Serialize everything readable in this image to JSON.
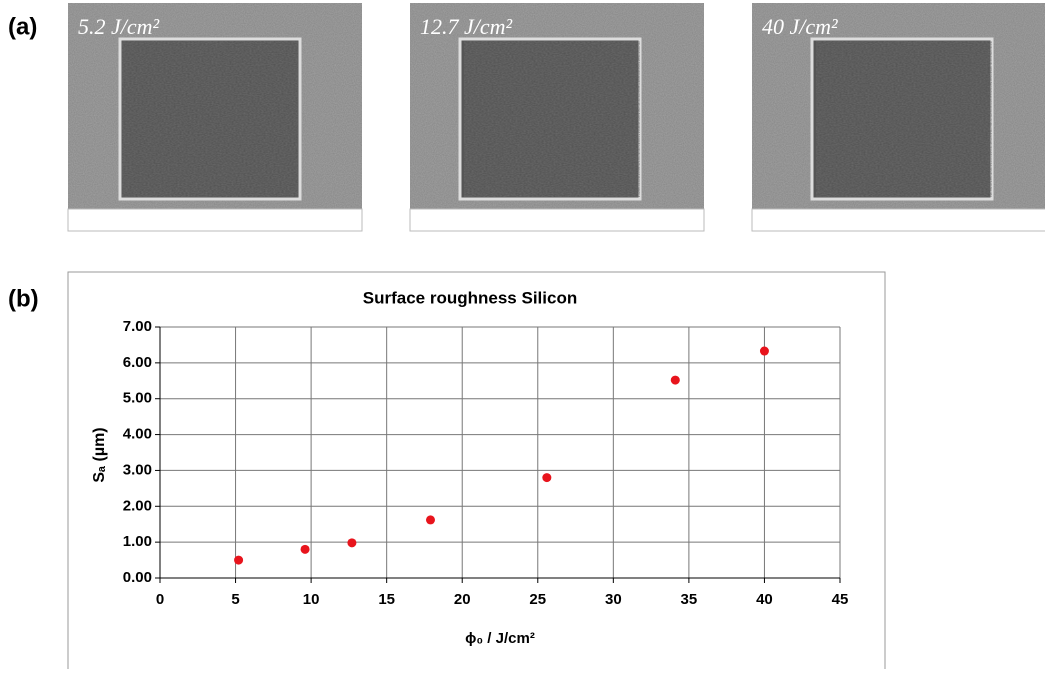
{
  "panels": {
    "a": {
      "label": "(a)",
      "images": [
        {
          "label": "5.2 J/cm²"
        },
        {
          "label": "12.7 J/cm²"
        },
        {
          "label": "40 J/cm²"
        }
      ]
    },
    "b": {
      "label": "(b)"
    }
  },
  "chart_data": {
    "type": "scatter",
    "title": "Surface roughness Silicon",
    "x_label": "ϕ₀ / J/cm²",
    "y_label": "Sₐ (µm)",
    "x": [
      5.2,
      9.6,
      12.7,
      17.9,
      25.6,
      34.1,
      40
    ],
    "series": [
      {
        "color": "#e8141c",
        "values": [
          0.5,
          0.8,
          0.98,
          1.62,
          2.8,
          5.52,
          6.33
        ]
      }
    ],
    "xlim": [
      0,
      45
    ],
    "xticks": [
      0,
      5,
      10,
      15,
      20,
      25,
      30,
      35,
      40,
      45
    ],
    "ylim": [
      0,
      7
    ],
    "yticks": [
      {
        "value": 0,
        "label": "0.00"
      },
      {
        "value": 1,
        "label": "1.00"
      },
      {
        "value": 2,
        "label": "2.00"
      },
      {
        "value": 3,
        "label": "3.00"
      },
      {
        "value": 4,
        "label": "4.00"
      },
      {
        "value": 5,
        "label": "5.00"
      },
      {
        "value": 6,
        "label": "6.00"
      },
      {
        "value": 7,
        "label": "7.00"
      }
    ],
    "grid": true
  }
}
